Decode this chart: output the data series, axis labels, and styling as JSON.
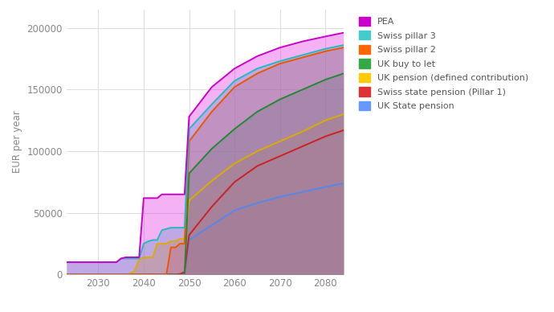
{
  "ylabel": "EUR per year",
  "xlim": [
    2023,
    2084
  ],
  "ylim": [
    0,
    215000
  ],
  "yticks": [
    0,
    50000,
    100000,
    150000,
    200000
  ],
  "xticks": [
    2030,
    2040,
    2050,
    2060,
    2070,
    2080
  ],
  "background": "#ffffff",
  "draw_order": [
    "UK State pension",
    "Swiss state pension (Pillar 1)",
    "UK pension (defined contribution)",
    "UK buy to let",
    "Swiss pillar 2",
    "Swiss pillar 3",
    "PEA"
  ],
  "series": {
    "UK State pension": {
      "fill_color": "#7aadff",
      "fill_alpha": 0.55,
      "line_color": "#5588ee",
      "x": [
        2023,
        2024,
        2025,
        2026,
        2027,
        2028,
        2029,
        2030,
        2031,
        2032,
        2033,
        2034,
        2035,
        2036,
        2037,
        2038,
        2039,
        2040,
        2041,
        2042,
        2043,
        2044,
        2045,
        2046,
        2047,
        2048,
        2049,
        2050,
        2055,
        2060,
        2065,
        2070,
        2075,
        2080,
        2084
      ],
      "y": [
        0,
        0,
        0,
        0,
        0,
        0,
        0,
        0,
        0,
        0,
        0,
        0,
        0,
        0,
        0,
        0,
        0,
        0,
        0,
        0,
        0,
        0,
        0,
        0,
        0,
        0,
        0,
        28000,
        40000,
        52000,
        58000,
        63000,
        67000,
        71000,
        74000
      ]
    },
    "Swiss state pension (Pillar 1)": {
      "fill_color": "#dd4444",
      "fill_alpha": 0.38,
      "line_color": "#cc2222",
      "x": [
        2023,
        2024,
        2025,
        2026,
        2027,
        2028,
        2029,
        2030,
        2031,
        2032,
        2033,
        2034,
        2035,
        2036,
        2037,
        2038,
        2039,
        2040,
        2041,
        2042,
        2043,
        2044,
        2045,
        2046,
        2047,
        2048,
        2049,
        2050,
        2055,
        2060,
        2065,
        2070,
        2075,
        2080,
        2084
      ],
      "y": [
        0,
        0,
        0,
        0,
        0,
        0,
        0,
        0,
        0,
        0,
        0,
        0,
        0,
        0,
        0,
        0,
        0,
        0,
        0,
        0,
        0,
        0,
        0,
        0,
        0,
        500,
        2000,
        32000,
        55000,
        75000,
        88000,
        96000,
        104000,
        112000,
        117000
      ]
    },
    "UK pension (defined contribution)": {
      "fill_color": "#ffdd44",
      "fill_alpha": 0.65,
      "line_color": "#ddaa00",
      "x": [
        2023,
        2024,
        2025,
        2026,
        2027,
        2028,
        2029,
        2030,
        2031,
        2032,
        2033,
        2034,
        2035,
        2036,
        2037,
        2038,
        2039,
        2040,
        2041,
        2042,
        2043,
        2044,
        2045,
        2046,
        2047,
        2048,
        2049,
        2050,
        2055,
        2060,
        2065,
        2070,
        2075,
        2080,
        2084
      ],
      "y": [
        0,
        0,
        0,
        0,
        0,
        0,
        0,
        0,
        0,
        0,
        0,
        0,
        0,
        0,
        800,
        3000,
        12000,
        14000,
        14000,
        14000,
        25000,
        25000,
        25000,
        27000,
        27000,
        29000,
        29000,
        60000,
        76000,
        90000,
        100000,
        108000,
        116000,
        125000,
        130000
      ]
    },
    "UK buy to let": {
      "fill_color": "#33aa55",
      "fill_alpha": 0.45,
      "line_color": "#228833",
      "x": [
        2023,
        2024,
        2025,
        2026,
        2027,
        2028,
        2029,
        2030,
        2031,
        2032,
        2033,
        2034,
        2035,
        2036,
        2037,
        2038,
        2039,
        2040,
        2041,
        2042,
        2043,
        2044,
        2045,
        2046,
        2047,
        2048,
        2049,
        2050,
        2055,
        2060,
        2065,
        2070,
        2075,
        2080,
        2084
      ],
      "y": [
        0,
        0,
        0,
        0,
        0,
        0,
        0,
        0,
        0,
        0,
        0,
        0,
        0,
        0,
        0,
        0,
        0,
        0,
        0,
        0,
        0,
        0,
        0,
        0,
        0,
        0,
        0,
        82000,
        102000,
        118000,
        132000,
        142000,
        150000,
        158000,
        163000
      ]
    },
    "Swiss pillar 2": {
      "fill_color": "#ff7722",
      "fill_alpha": 0.4,
      "line_color": "#ee5500",
      "x": [
        2023,
        2024,
        2025,
        2026,
        2027,
        2028,
        2029,
        2030,
        2031,
        2032,
        2033,
        2034,
        2035,
        2036,
        2037,
        2038,
        2039,
        2040,
        2041,
        2042,
        2043,
        2044,
        2045,
        2046,
        2047,
        2048,
        2049,
        2050,
        2055,
        2060,
        2065,
        2070,
        2075,
        2080,
        2084
      ],
      "y": [
        0,
        0,
        0,
        0,
        0,
        0,
        0,
        0,
        0,
        0,
        0,
        0,
        0,
        0,
        0,
        0,
        0,
        0,
        0,
        0,
        0,
        0,
        0,
        22000,
        22000,
        25000,
        25000,
        108000,
        132000,
        152000,
        163000,
        171000,
        176000,
        181000,
        184000
      ]
    },
    "Swiss pillar 3": {
      "fill_color": "#44ddcc",
      "fill_alpha": 0.4,
      "line_color": "#22bbbb",
      "x": [
        2023,
        2024,
        2025,
        2026,
        2027,
        2028,
        2029,
        2030,
        2031,
        2032,
        2033,
        2034,
        2035,
        2036,
        2037,
        2038,
        2039,
        2040,
        2041,
        2042,
        2043,
        2044,
        2045,
        2046,
        2047,
        2048,
        2049,
        2050,
        2055,
        2060,
        2065,
        2070,
        2075,
        2080,
        2084
      ],
      "y": [
        10000,
        10000,
        10000,
        10000,
        10000,
        10000,
        10000,
        10000,
        10000,
        10000,
        10000,
        10000,
        13000,
        13000,
        13000,
        13000,
        13000,
        25000,
        27000,
        28000,
        28000,
        36000,
        37000,
        38000,
        38000,
        38000,
        38000,
        118000,
        138000,
        157000,
        167000,
        173000,
        178000,
        183000,
        186000
      ]
    },
    "PEA": {
      "fill_color": "#dd00dd",
      "fill_alpha": 0.3,
      "line_color": "#cc00cc",
      "x": [
        2023,
        2024,
        2025,
        2026,
        2027,
        2028,
        2029,
        2030,
        2031,
        2032,
        2033,
        2034,
        2035,
        2036,
        2037,
        2038,
        2039,
        2040,
        2041,
        2042,
        2043,
        2044,
        2045,
        2046,
        2047,
        2048,
        2049,
        2050,
        2055,
        2060,
        2065,
        2070,
        2075,
        2080,
        2084
      ],
      "y": [
        10000,
        10000,
        10000,
        10000,
        10000,
        10000,
        10000,
        10000,
        10000,
        10000,
        10000,
        10000,
        13000,
        14000,
        14000,
        14000,
        14000,
        62000,
        62000,
        62000,
        62000,
        65000,
        65000,
        65000,
        65000,
        65000,
        65000,
        128000,
        152000,
        167000,
        177000,
        184000,
        189000,
        193000,
        196000
      ]
    }
  },
  "legend_order": [
    "PEA",
    "Swiss pillar 3",
    "Swiss pillar 2",
    "UK buy to let",
    "UK pension (defined contribution)",
    "Swiss state pension (Pillar 1)",
    "UK State pension"
  ],
  "legend_colors": {
    "PEA": "#cc00cc",
    "Swiss pillar 3": "#44cccc",
    "Swiss pillar 2": "#ff6600",
    "UK buy to let": "#33aa44",
    "UK pension (defined contribution)": "#ffcc00",
    "Swiss state pension (Pillar 1)": "#dd3333",
    "UK State pension": "#6699ff"
  }
}
